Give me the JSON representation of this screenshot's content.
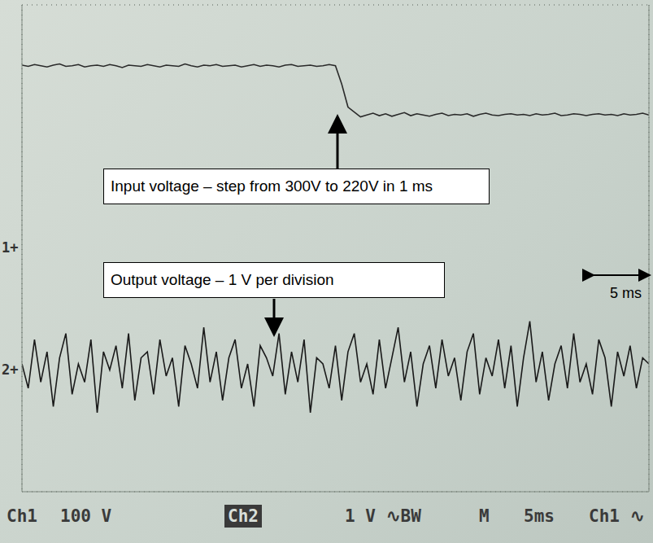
{
  "chart_data": {
    "type": "line",
    "annotations": [
      "Input voltage – step from 300V to 220V in 1 ms",
      "Output voltage – 1 V per division",
      "5 ms"
    ],
    "status_bar": [
      "Ch1",
      "100 V",
      "Ch2",
      "1 V ∿BW",
      "M",
      "5ms",
      "Ch1 ∿"
    ],
    "channel_markers": [
      "1+",
      "2+"
    ],
    "x": [
      -25,
      -24.5,
      -24,
      -23.5,
      -23,
      -22.5,
      -22,
      -21.5,
      -21,
      -20.5,
      -20,
      -19.5,
      -19,
      -18.5,
      -18,
      -17.5,
      -17,
      -16.5,
      -16,
      -15.5,
      -15,
      -14.5,
      -14,
      -13.5,
      -13,
      -12.5,
      -12,
      -11.5,
      -11,
      -10.5,
      -10,
      -9.5,
      -9,
      -8.5,
      -8,
      -7.5,
      -7,
      -6.5,
      -6,
      -5.5,
      -5,
      -4.5,
      -4,
      -3.5,
      -3,
      -2.5,
      -2,
      -1.5,
      -1,
      -0.5,
      0,
      0.5,
      1,
      1.5,
      2,
      2.5,
      3,
      3.5,
      4,
      4.5,
      5,
      5.5,
      6,
      6.5,
      7,
      7.5,
      8,
      8.5,
      9,
      9.5,
      10,
      10.5,
      11,
      11.5,
      12,
      12.5,
      13,
      13.5,
      14,
      14.5,
      15,
      15.5,
      16,
      16.5,
      17,
      17.5,
      18,
      18.5,
      19,
      19.5,
      20,
      20.5,
      21,
      21.5,
      22,
      22.5,
      23,
      23.5,
      24,
      24.5,
      25
    ],
    "series": [
      {
        "name": "Ch1",
        "color": "#2a2a2a",
        "values": [
          301,
          299,
          302,
          300,
          298,
          301,
          303,
          299,
          300,
          302,
          298,
          300,
          301,
          299,
          302,
          300,
          297,
          301,
          300,
          299,
          302,
          300,
          298,
          301,
          300,
          299,
          303,
          300,
          298,
          301,
          300,
          302,
          299,
          300,
          301,
          298,
          300,
          302,
          299,
          301,
          300,
          298,
          301,
          302,
          299,
          300,
          301,
          299,
          300,
          302,
          300,
          270,
          232,
          224,
          216,
          219,
          222,
          218,
          221,
          217,
          220,
          223,
          218,
          221,
          219,
          217,
          220,
          222,
          218,
          220,
          219,
          221,
          217,
          220,
          222,
          219,
          218,
          220,
          221,
          219,
          220,
          218,
          221,
          219,
          220,
          222,
          218,
          219,
          221,
          220,
          218,
          220,
          221,
          219,
          220,
          218,
          221,
          219,
          220,
          222,
          219
        ]
      },
      {
        "name": "Ch2",
        "color": "#1a1a1a",
        "axis": "y2",
        "values": [
          0.1,
          -0.3,
          0.5,
          -0.2,
          0.3,
          -0.6,
          0.2,
          0.6,
          -0.4,
          0.1,
          -0.2,
          0.5,
          -0.7,
          0.3,
          0.0,
          0.4,
          -0.3,
          0.6,
          -0.5,
          0.2,
          0.3,
          -0.4,
          0.5,
          -0.1,
          0.2,
          -0.6,
          0.4,
          0.1,
          -0.3,
          0.7,
          -0.2,
          0.3,
          -0.5,
          0.2,
          0.5,
          -0.3,
          0.1,
          -0.6,
          0.4,
          0.2,
          -0.1,
          0.6,
          -0.4,
          0.3,
          -0.2,
          0.5,
          -0.7,
          0.2,
          0.1,
          -0.3,
          0.4,
          -0.5,
          0.3,
          0.6,
          -0.2,
          0.1,
          -0.4,
          0.5,
          -0.3,
          0.2,
          0.7,
          -0.2,
          0.3,
          -0.6,
          0.1,
          0.4,
          -0.3,
          0.5,
          -0.1,
          0.2,
          -0.5,
          0.3,
          0.6,
          -0.4,
          0.2,
          -0.1,
          0.5,
          -0.3,
          0.4,
          -0.6,
          0.2,
          0.8,
          -0.2,
          0.3,
          -0.5,
          0.1,
          0.4,
          -0.3,
          0.6,
          -0.2,
          0.1,
          -0.4,
          0.5,
          0.2,
          -0.6,
          0.3,
          -0.1,
          0.4,
          -0.3,
          0.2,
          0.1
        ]
      }
    ],
    "xlim": [
      -25,
      25
    ],
    "xticks": [
      -25,
      -20,
      -15,
      -10,
      -5,
      0,
      5,
      10,
      15,
      20,
      25
    ],
    "ylim": [
      -400,
      400
    ],
    "yticks": [
      -400,
      -300,
      -200,
      -100,
      0,
      100,
      200,
      300,
      400
    ],
    "y2lim": [
      -2,
      6
    ],
    "y2ticks": [
      -2,
      -1,
      0,
      1,
      2,
      3,
      4,
      5,
      6
    ],
    "grid": true,
    "tick_labels": false
  }
}
